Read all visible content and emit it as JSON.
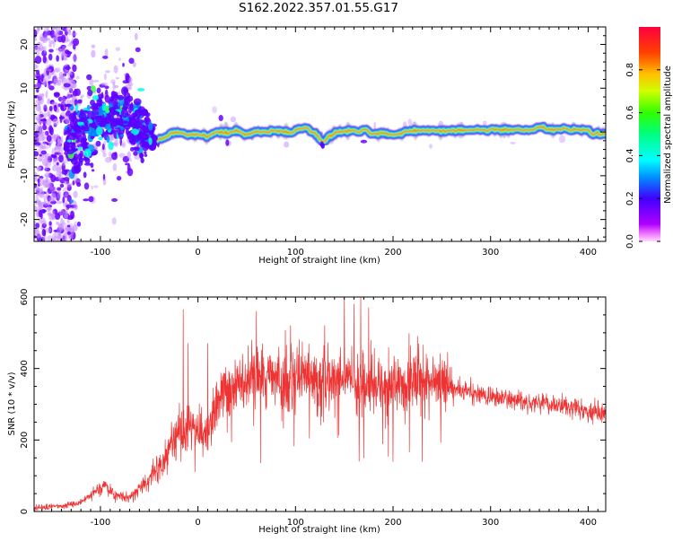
{
  "title": "S162.2022.357.01.55.G17",
  "chart_data": [
    {
      "type": "heatmap",
      "title": "",
      "xlabel": "Height of straight line (km)",
      "ylabel": "Frequency (Hz)",
      "xlim": [
        -168,
        418
      ],
      "ylim": [
        -25,
        24
      ],
      "x_ticks": [
        -100,
        0,
        100,
        200,
        300,
        400
      ],
      "y_ticks": [
        -20,
        -10,
        0,
        10,
        20
      ],
      "colorbar": {
        "label": "Normalized spectral amplitude",
        "range": [
          0,
          1
        ],
        "ticks": [
          "0.0",
          "0.2",
          "0.4",
          "0.6",
          "0.8"
        ],
        "colormap": "gist_rainbow_reversed"
      },
      "ridge_frequency_hz": [
        [
          -168,
          -1.0
        ],
        [
          -140,
          -3.0
        ],
        [
          -120,
          -1.0
        ],
        [
          -110,
          1.5
        ],
        [
          -95,
          3.0
        ],
        [
          -80,
          4.0
        ],
        [
          -70,
          3.0
        ],
        [
          -60,
          1.5
        ],
        [
          -55,
          0.5
        ],
        [
          -50,
          -1.0
        ],
        [
          -45,
          -2.0
        ],
        [
          -35,
          -1.5
        ],
        [
          -25,
          0.0
        ],
        [
          -10,
          -0.5
        ],
        [
          0,
          -0.5
        ],
        [
          10,
          -1.0
        ],
        [
          20,
          0.2
        ],
        [
          30,
          -0.3
        ],
        [
          40,
          0.3
        ],
        [
          50,
          -0.5
        ],
        [
          60,
          0.0
        ],
        [
          70,
          0.0
        ],
        [
          80,
          0.3
        ],
        [
          95,
          -0.2
        ],
        [
          105,
          0.8
        ],
        [
          112,
          0.8
        ],
        [
          120,
          -0.5
        ],
        [
          128,
          -2.3
        ],
        [
          135,
          -1.0
        ],
        [
          142,
          0.0
        ],
        [
          160,
          0.3
        ],
        [
          170,
          0.3
        ],
        [
          180,
          -0.5
        ],
        [
          190,
          -0.3
        ],
        [
          200,
          -0.8
        ],
        [
          212,
          0.0
        ],
        [
          225,
          0.3
        ],
        [
          240,
          0.3
        ],
        [
          255,
          0.3
        ],
        [
          260,
          0.4
        ],
        [
          300,
          0.5
        ],
        [
          345,
          0.5
        ],
        [
          352,
          1.5
        ],
        [
          358,
          0.6
        ],
        [
          380,
          0.6
        ],
        [
          398,
          0.5
        ],
        [
          405,
          -0.5
        ],
        [
          418,
          -0.5
        ]
      ]
    },
    {
      "type": "line",
      "title": "",
      "xlabel": "Height of straight line (km)",
      "ylabel": "SNR (10 * v/v)",
      "xlim": [
        -168,
        418
      ],
      "ylim": [
        0,
        600
      ],
      "x_ticks": [
        -100,
        0,
        100,
        200,
        300,
        400
      ],
      "y_ticks": [
        0,
        200,
        400,
        600
      ],
      "series_color": "#ee3333",
      "envelope": [
        [
          -168,
          10
        ],
        [
          -140,
          15
        ],
        [
          -120,
          25
        ],
        [
          -105,
          60
        ],
        [
          -95,
          70
        ],
        [
          -85,
          45
        ],
        [
          -70,
          40
        ],
        [
          -55,
          75
        ],
        [
          -40,
          120
        ],
        [
          -30,
          175
        ],
        [
          -20,
          230
        ],
        [
          -10,
          240
        ],
        [
          0,
          220
        ],
        [
          10,
          210
        ],
        [
          20,
          300
        ],
        [
          35,
          345
        ],
        [
          60,
          370
        ],
        [
          90,
          370
        ],
        [
          120,
          370
        ],
        [
          150,
          365
        ],
        [
          180,
          360
        ],
        [
          210,
          360
        ],
        [
          240,
          355
        ],
        [
          270,
          340
        ],
        [
          300,
          320
        ],
        [
          330,
          310
        ],
        [
          360,
          300
        ],
        [
          390,
          285
        ],
        [
          418,
          272
        ]
      ],
      "spikes": [
        [
          -15,
          565
        ],
        [
          -10,
          470
        ],
        [
          10,
          470
        ],
        [
          60,
          560
        ],
        [
          95,
          520
        ],
        [
          130,
          520
        ],
        [
          150,
          600
        ],
        [
          160,
          580
        ],
        [
          167,
          600
        ],
        [
          175,
          570
        ],
        [
          200,
          140
        ],
        [
          225,
          490
        ],
        [
          170,
          150
        ],
        [
          230,
          140
        ]
      ]
    }
  ]
}
